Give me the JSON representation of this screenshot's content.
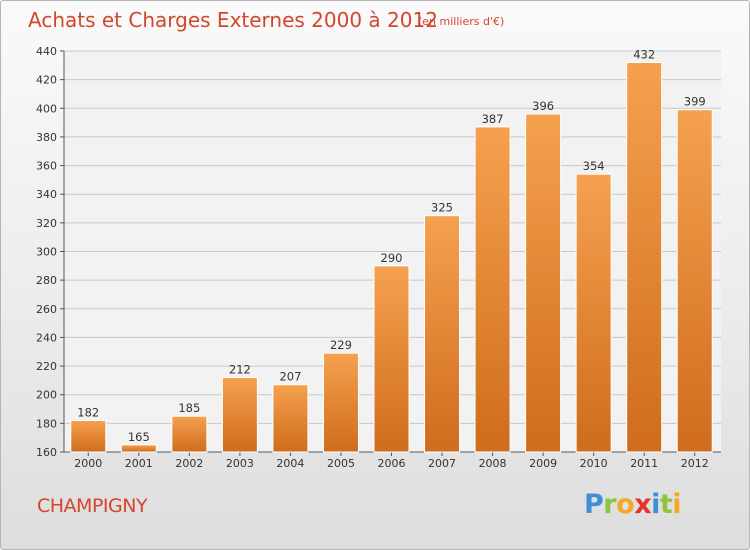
{
  "chart_data": {
    "type": "bar",
    "title": "Achats et Charges Externes 2000 à 2012",
    "subtitle": "(en milliers d'€)",
    "categories": [
      "2000",
      "2001",
      "2002",
      "2003",
      "2004",
      "2005",
      "2006",
      "2007",
      "2008",
      "2009",
      "2010",
      "2011",
      "2012"
    ],
    "values": [
      182,
      165,
      185,
      212,
      207,
      229,
      290,
      325,
      387,
      396,
      354,
      432,
      399
    ],
    "ylim": [
      160,
      440
    ],
    "yticks": [
      160,
      180,
      200,
      220,
      240,
      260,
      280,
      300,
      320,
      340,
      360,
      380,
      400,
      420,
      440
    ],
    "grid": true,
    "bar_color_top": "#f5a14f",
    "bar_color_bottom": "#cf6c1d",
    "title_color": "#d2472b"
  },
  "footer": {
    "commune": "CHAMPIGNY",
    "logo": [
      "P",
      "r",
      "o",
      "x",
      "i",
      "t",
      "i"
    ]
  }
}
